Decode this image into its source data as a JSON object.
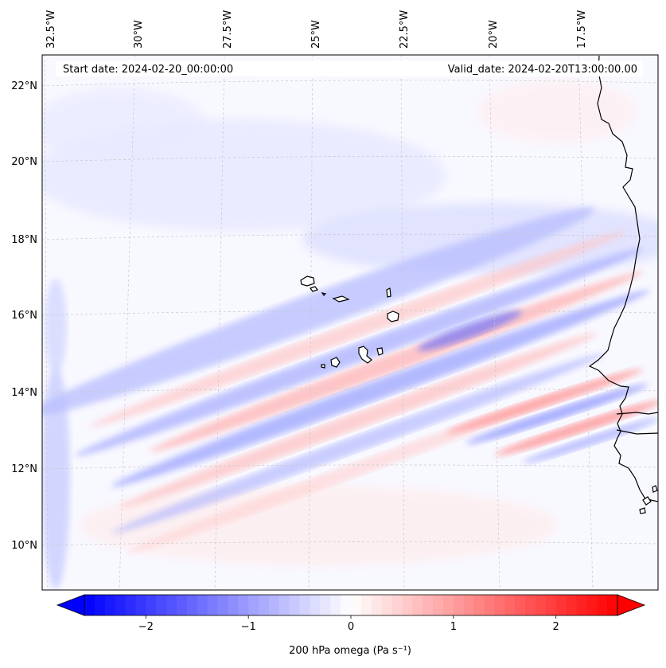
{
  "map": {
    "start_date": "Start date: 2024-02-20_00:00:00",
    "valid_date": "Valid_date: 2024-02-20T13:00:00.00",
    "lon_labels": [
      "32.5°W",
      "30°W",
      "27.5°W",
      "25°W",
      "22.5°W",
      "20°W",
      "17.5°W"
    ],
    "lat_labels": [
      "22°N",
      "20°N",
      "18°N",
      "16°N",
      "14°N",
      "12°N",
      "10°N"
    ],
    "field_extent": {
      "lon_min": -33.0,
      "lon_max": -15.8,
      "lat_min": 8.9,
      "lat_max": 22.8
    }
  },
  "colorbar": {
    "label": "200 hPa omega (Pa s⁻¹)",
    "min": -2.6,
    "max": 2.6,
    "ticks": [
      {
        "label": "−2",
        "value": -2
      },
      {
        "label": "−1",
        "value": -1
      },
      {
        "label": "0",
        "value": 0
      },
      {
        "label": "1",
        "value": 1
      },
      {
        "label": "2",
        "value": 2
      }
    ],
    "neg_color": "#0000ff",
    "mid_color": "#ffffff",
    "pos_color": "#ff0000"
  }
}
